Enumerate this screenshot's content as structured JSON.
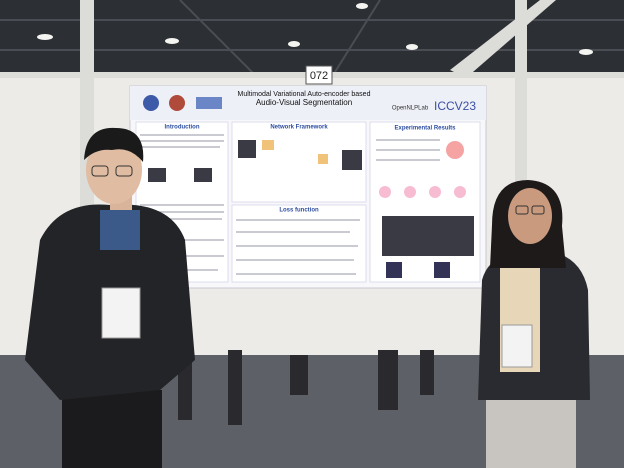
{
  "board_number": "072",
  "poster": {
    "title": [
      "Multimodal Variational Auto-encoder based",
      "Audio-Visual Segmentation"
    ],
    "sections": [
      "Introduction",
      "Network Framework",
      "Experimental Results",
      "Loss function"
    ],
    "lab": "OpenNLPLab",
    "venue": "ICCV23"
  }
}
